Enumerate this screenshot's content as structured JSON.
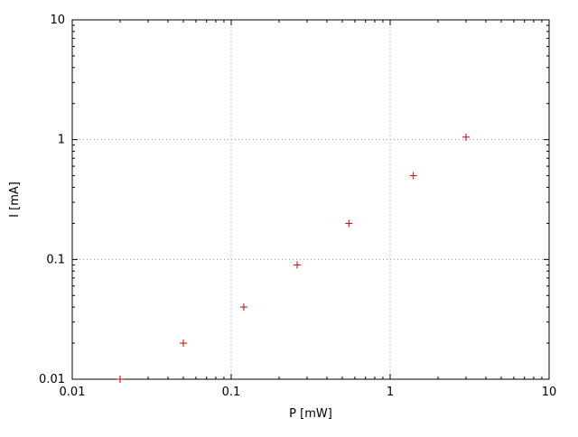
{
  "chart_data": {
    "type": "scatter",
    "title": "",
    "xlabel": "P [mW]",
    "ylabel": "I [mA]",
    "xscale": "log",
    "yscale": "log",
    "xlim": [
      0.01,
      10
    ],
    "ylim": [
      0.01,
      10
    ],
    "x_ticks": [
      "0.01",
      "0.1",
      "1",
      "10"
    ],
    "y_ticks": [
      "0.01",
      "0.1",
      "1",
      "10"
    ],
    "grid": true,
    "legend": "none",
    "marker": "plus",
    "marker_color": "#cc0000",
    "border_color": "#000000",
    "grid_color": "#9a9a9a",
    "points": [
      {
        "x": 0.02,
        "y": 0.01
      },
      {
        "x": 0.05,
        "y": 0.02
      },
      {
        "x": 0.12,
        "y": 0.04
      },
      {
        "x": 0.26,
        "y": 0.09
      },
      {
        "x": 0.55,
        "y": 0.2
      },
      {
        "x": 1.4,
        "y": 0.5
      },
      {
        "x": 3.0,
        "y": 1.05
      }
    ]
  }
}
